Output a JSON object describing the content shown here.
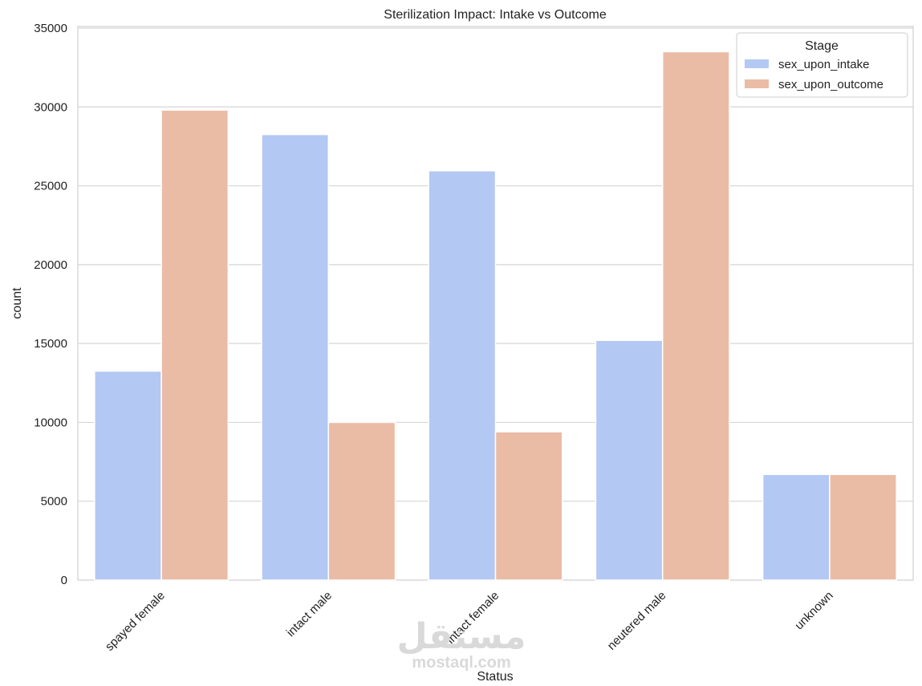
{
  "chart_data": {
    "type": "bar",
    "title": "Sterilization Impact: Intake vs Outcome",
    "xlabel": "Status",
    "ylabel": "count",
    "categories": [
      "spayed female",
      "intact male",
      "intact female",
      "neutered male",
      "unknown"
    ],
    "series": [
      {
        "name": "sex_upon_intake",
        "color": "#b3c8f3",
        "values": [
          13250,
          28250,
          25950,
          15200,
          6700
        ]
      },
      {
        "name": "sex_upon_outcome",
        "color": "#eabca6",
        "values": [
          29800,
          10000,
          9400,
          33500,
          6700
        ]
      }
    ],
    "ylim": [
      0,
      35100
    ],
    "yticks": [
      0,
      5000,
      10000,
      15000,
      20000,
      25000,
      30000,
      35000
    ],
    "grid": true,
    "legend": {
      "title": "Stage",
      "placement": "top-right"
    }
  },
  "watermark": {
    "arabic": "مستقل",
    "latin": "mostaql.com"
  }
}
